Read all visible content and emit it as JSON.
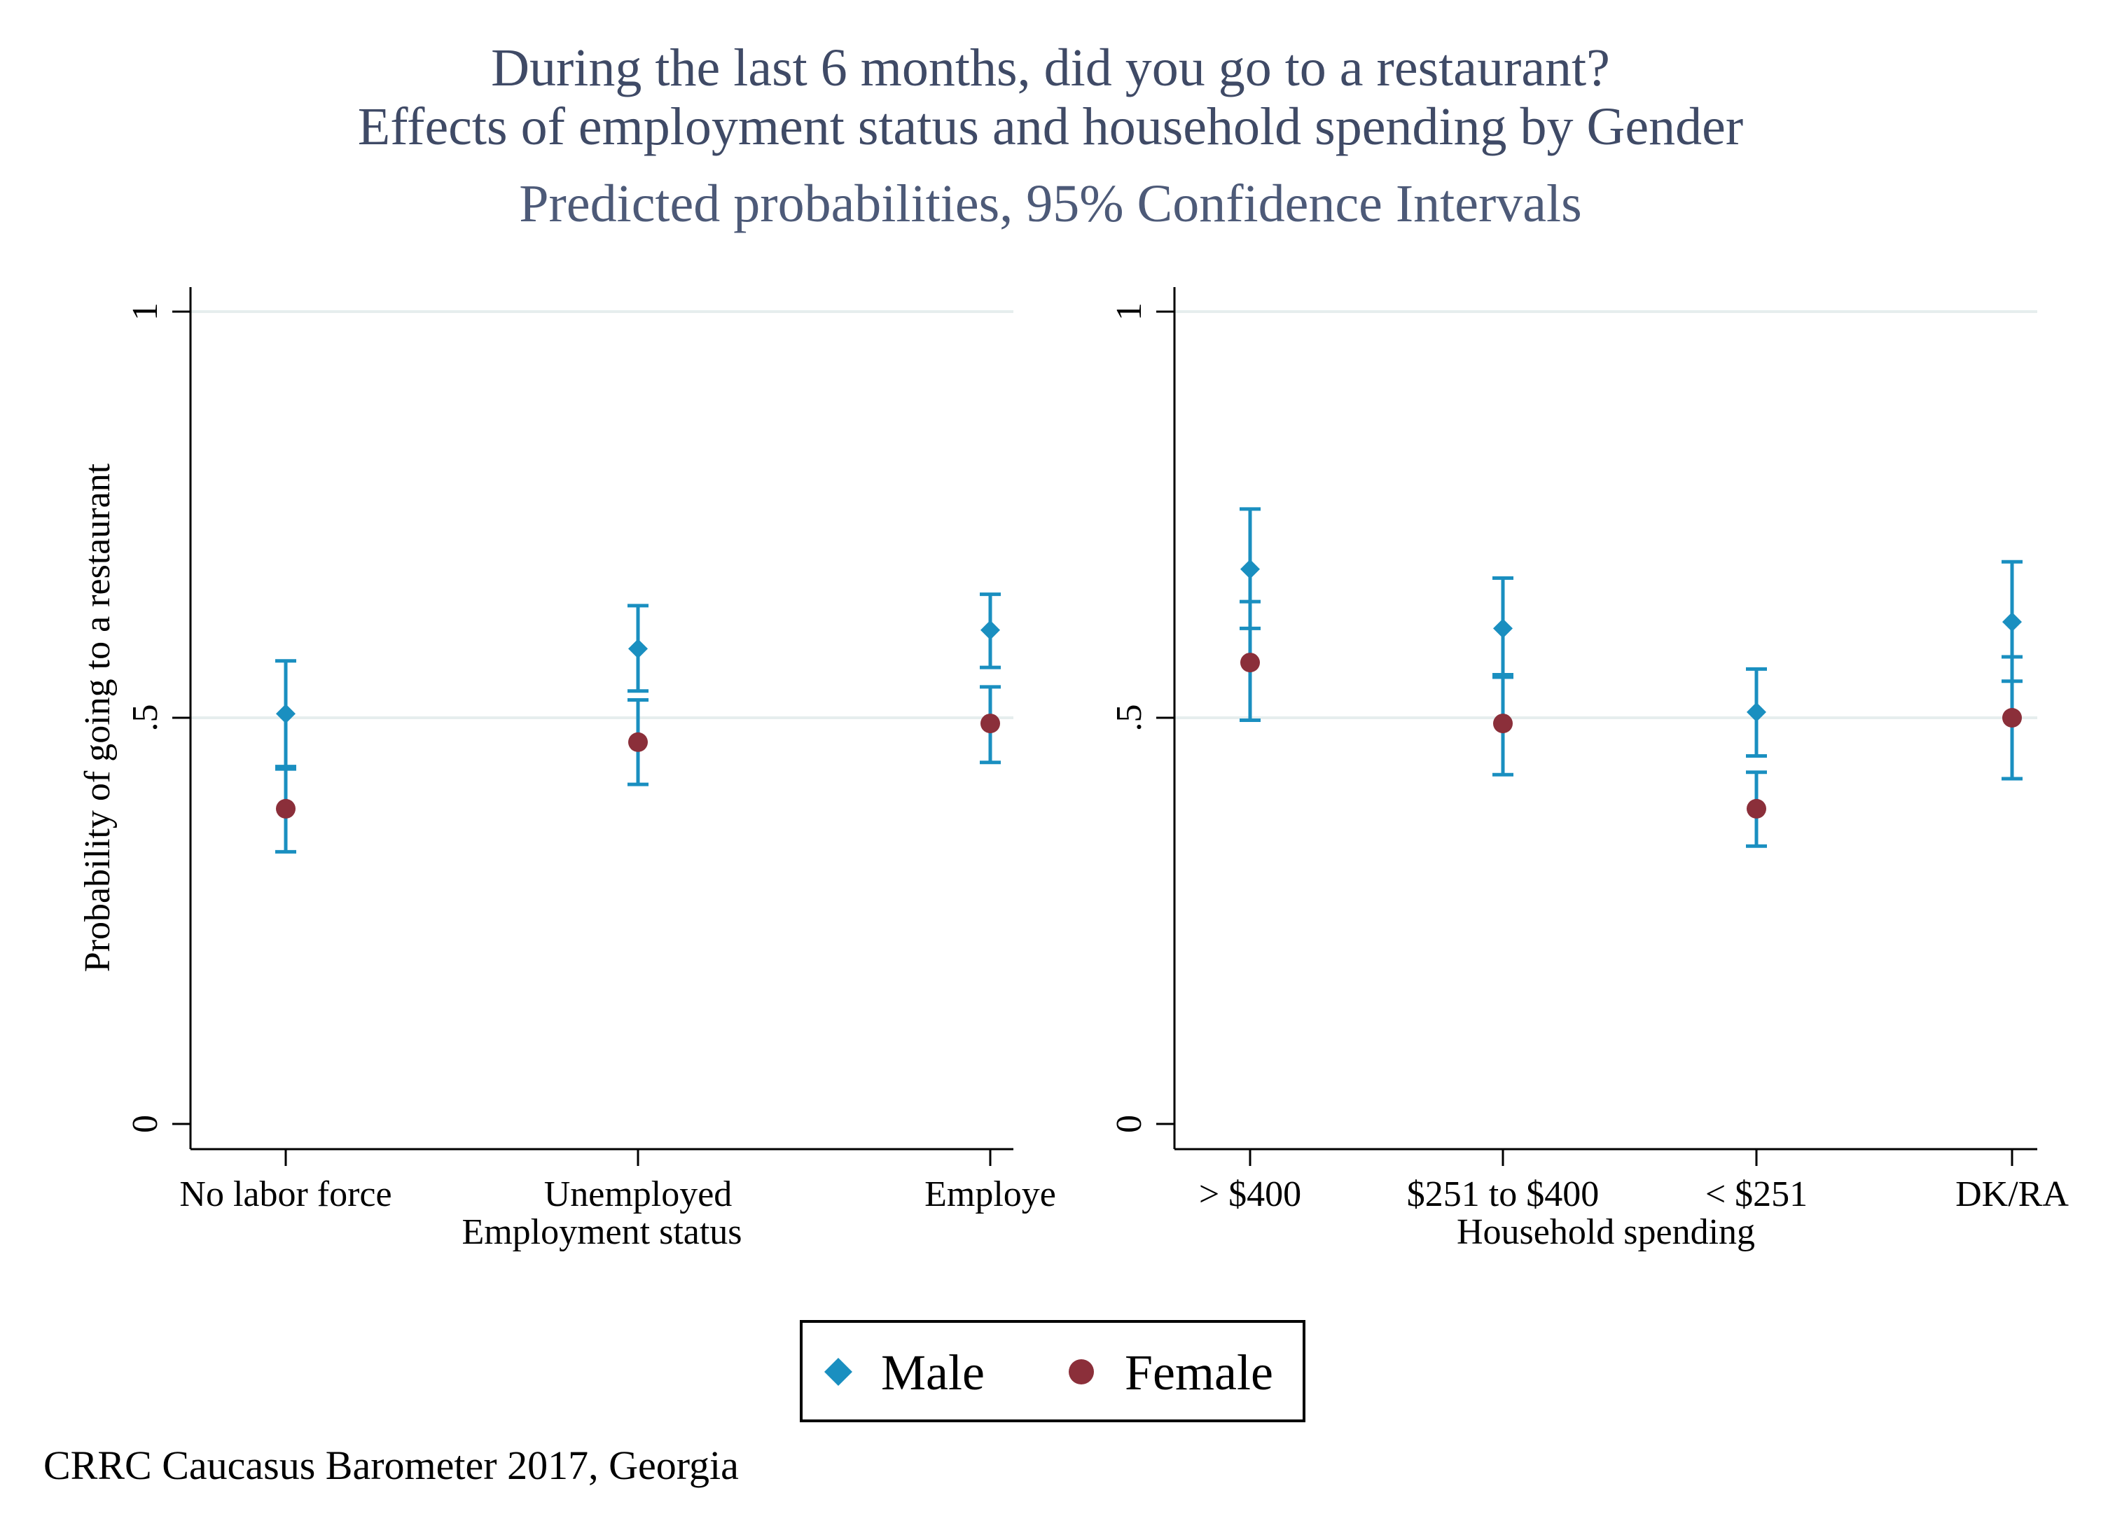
{
  "title": "During the last 6 months, did you go to a restaurant?",
  "title_line2": "Effects of employment status and household spending by Gender",
  "subtitle": "Predicted probabilities, 95% Confidence Intervals",
  "note": "CRRC Caucasus Barometer 2017, Georgia",
  "colors": {
    "male": "#1a8fc0",
    "female": "#8b2f3a",
    "grid": "#e6eeee",
    "title": "#3f4a66"
  },
  "legend": {
    "placement": "bottom-center",
    "items": [
      {
        "label": "Male",
        "marker": "diamond",
        "color": "#1a8fc0"
      },
      {
        "label": "Female",
        "marker": "circle",
        "color": "#8b2f3a"
      }
    ]
  },
  "chart_data": [
    {
      "type": "scatter",
      "panel": "left",
      "xlabel": "Employment status",
      "ylabel": "Probability of going to a restaurant",
      "ylim": [
        0,
        1
      ],
      "yticks": [
        "0",
        ".5",
        "1"
      ],
      "ytick_values": [
        0,
        0.5,
        1
      ],
      "grid": true,
      "categories": [
        "No labor force",
        "Unemployed",
        "Employed"
      ],
      "category_labels": [
        "No labor force",
        "Unemployed",
        "Employe"
      ],
      "series": [
        {
          "name": "Male",
          "values": [
            0.505,
            0.585,
            0.608
          ],
          "ci_low": [
            0.44,
            0.533,
            0.562
          ],
          "ci_high": [
            0.57,
            0.638,
            0.652
          ]
        },
        {
          "name": "Female",
          "values": [
            0.388,
            0.47,
            0.493
          ],
          "ci_low": [
            0.335,
            0.418,
            0.445
          ],
          "ci_high": [
            0.437,
            0.522,
            0.538
          ]
        }
      ]
    },
    {
      "type": "scatter",
      "panel": "right",
      "xlabel": "Household spending",
      "ylabel": "",
      "ylim": [
        0,
        1
      ],
      "yticks": [
        "0",
        ".5",
        "1"
      ],
      "ytick_values": [
        0,
        0.5,
        1
      ],
      "grid": true,
      "categories": [
        "> $400",
        "$251 to $400",
        "< $251",
        "DK/RA"
      ],
      "category_labels": [
        "> $400",
        "$251 to $400",
        "< $251",
        "DK/RA"
      ],
      "series": [
        {
          "name": "Male",
          "values": [
            0.683,
            0.61,
            0.507,
            0.618
          ],
          "ci_low": [
            0.61,
            0.55,
            0.453,
            0.545
          ],
          "ci_high": [
            0.757,
            0.672,
            0.56,
            0.692
          ]
        },
        {
          "name": "Female",
          "values": [
            0.568,
            0.493,
            0.388,
            0.5
          ],
          "ci_low": [
            0.497,
            0.43,
            0.342,
            0.425
          ],
          "ci_high": [
            0.643,
            0.553,
            0.433,
            0.575
          ]
        }
      ]
    }
  ]
}
